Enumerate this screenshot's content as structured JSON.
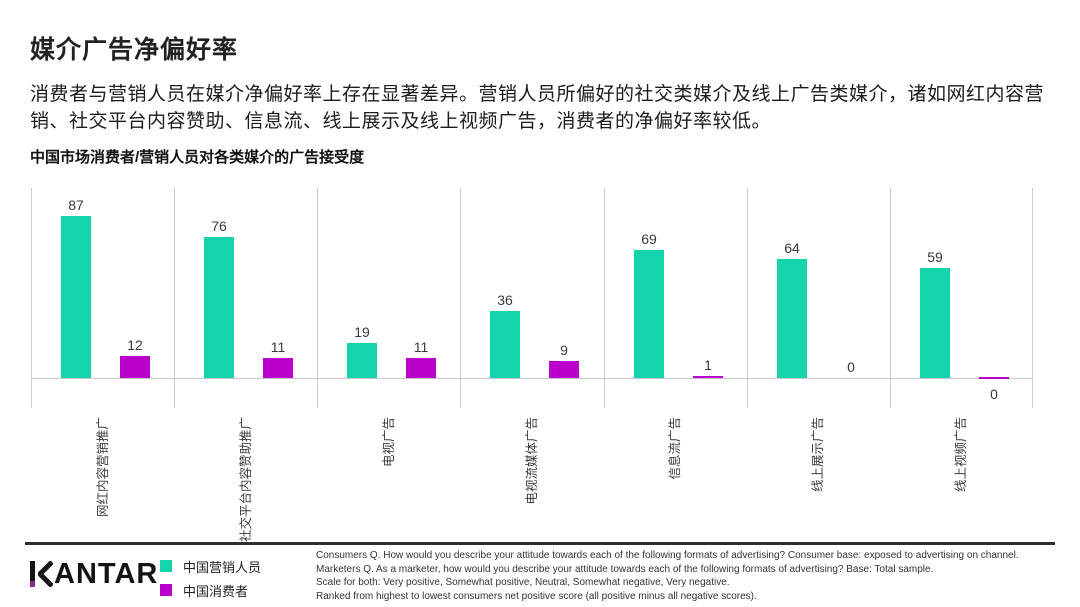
{
  "page": {
    "title": "媒介广告净偏好率",
    "intro": "消费者与营销人员在媒介净偏好率上存在显著差异。营销人员所偏好的社交类媒介及线上广告类媒介，诸如网红内容营销、社交平台内容赞助、信息流、线上展示及线上视频广告，消费者的净偏好率较低。",
    "chart_heading": "中国市场消费者/营销人员对各类媒介的广告接受度"
  },
  "chart_data": {
    "type": "bar",
    "title": "中国市场消费者/营销人员对各类媒介的广告接受度",
    "categories": [
      "网红内容营销推广",
      "社交平台内容赞助推广",
      "电视广告",
      "电视流媒体广告",
      "信息流广告",
      "线上展示广告",
      "线上视频广告"
    ],
    "series": [
      {
        "name": "中国营销人员",
        "color": "#14d4ac",
        "values": [
          87,
          76,
          19,
          36,
          69,
          64,
          59
        ],
        "labels": [
          "87",
          "76",
          "19",
          "36",
          "69",
          "64",
          "59"
        ],
        "label_positions": [
          "above",
          "above",
          "above",
          "above",
          "above",
          "above",
          "above"
        ]
      },
      {
        "name": "中国消费者",
        "color": "#bb00cc",
        "values": [
          12,
          11,
          11,
          9,
          1,
          0,
          0
        ],
        "labels": [
          "12",
          "11",
          "11",
          "9",
          "1",
          "0",
          "0"
        ],
        "label_positions": [
          "above",
          "above",
          "above",
          "above",
          "above",
          "above",
          "below"
        ]
      }
    ],
    "ylim": [
      -5,
      100
    ],
    "value_labels": true,
    "grid": "vertical-group-separators",
    "legend_position": "bottom-left"
  },
  "legend": {
    "items": [
      {
        "label": "中国营销人员",
        "color": "#14d4ac"
      },
      {
        "label": "中国消费者",
        "color": "#bb00cc"
      }
    ]
  },
  "footer": {
    "logo": "KANTAR",
    "notes": [
      "Consumers Q. How would you describe your attitude towards each of the following formats of advertising? Consumer base: exposed to advertising on channel.",
      "Marketers Q. As a marketer, how would you describe your attitude towards each of the following formats of advertising? Base: Total sample.",
      "Scale for both: Very positive, Somewhat positive, Neutral, Somewhat negative, Very negative.",
      "Ranked from highest to lowest consumers net positive score (all positive minus all negative scores)."
    ]
  }
}
